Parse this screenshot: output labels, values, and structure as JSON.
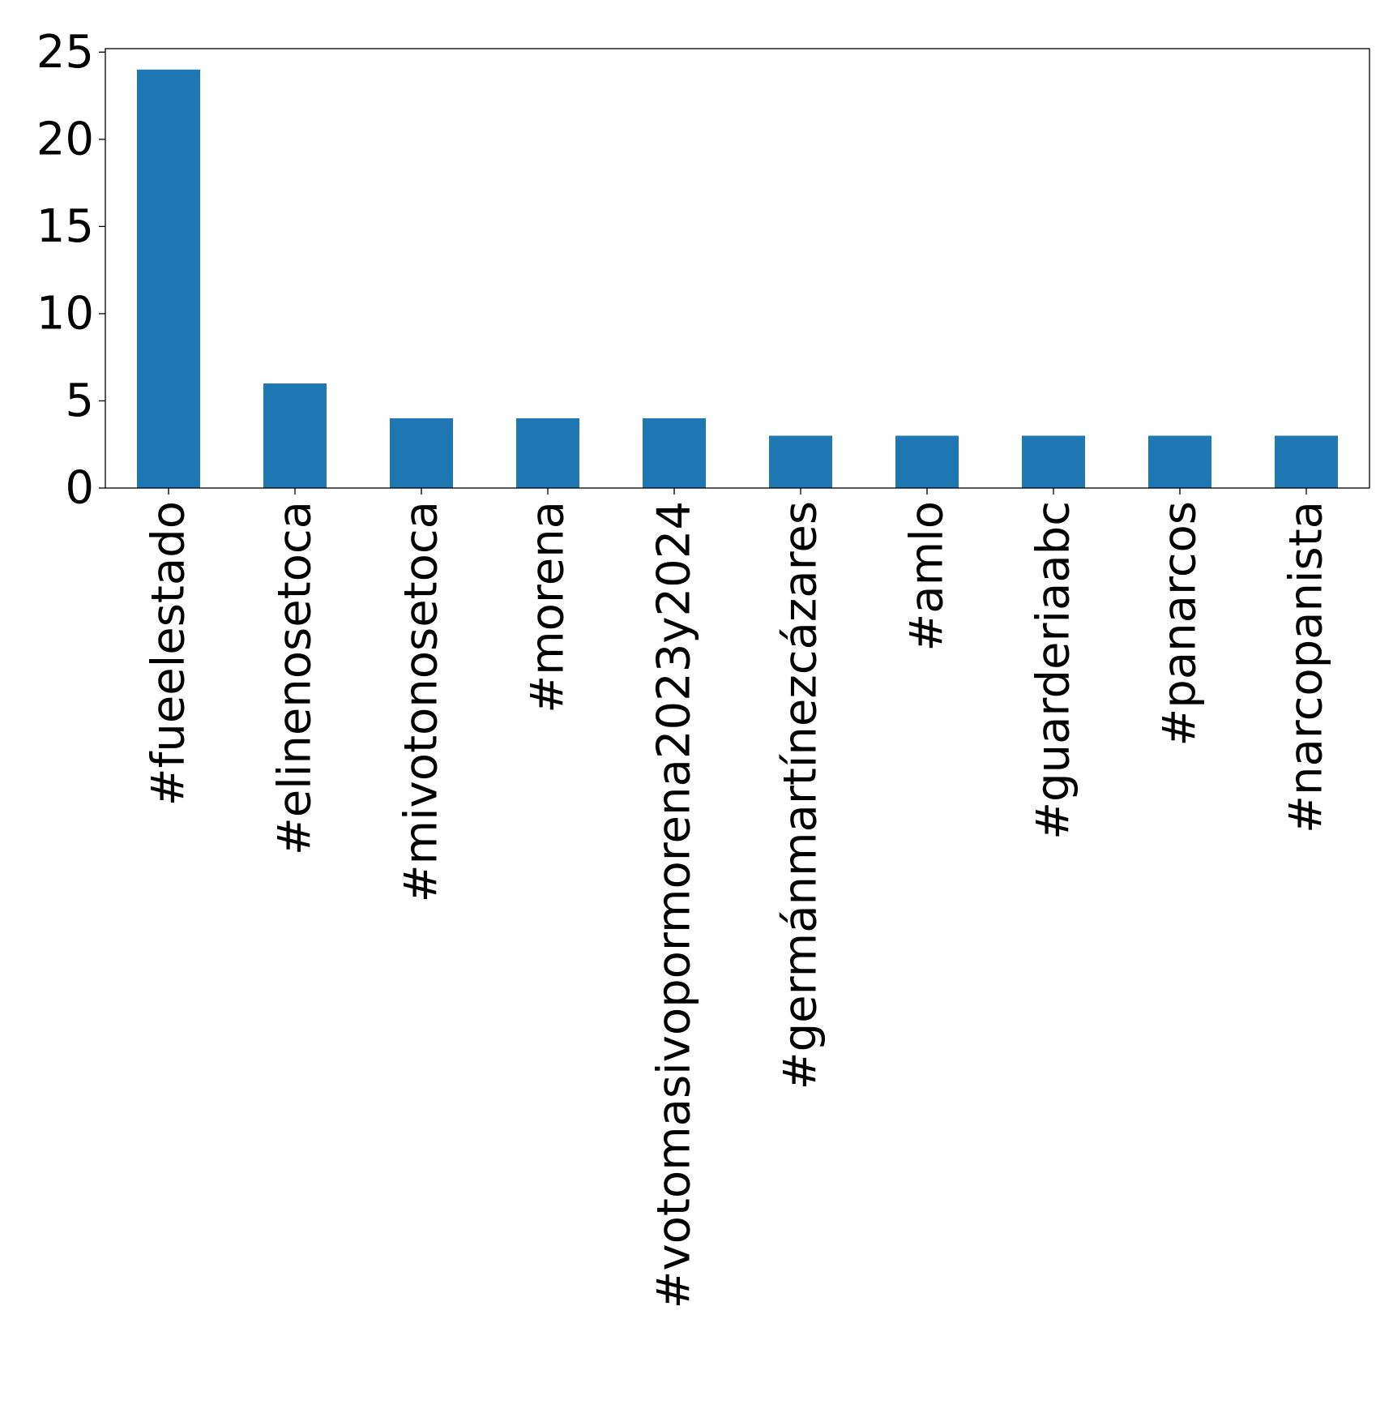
{
  "chart_data": {
    "type": "bar",
    "categories": [
      "#fueelestado",
      "#elinenosetoca",
      "#mivotonosetoca",
      "#morena",
      "#votomasivopormorena2023y2024",
      "#germánmartínezcázares",
      "#amlo",
      "#guarderiaabc",
      "#panarcos",
      "#narcopanista"
    ],
    "values": [
      24,
      6,
      4,
      4,
      4,
      3,
      3,
      3,
      3,
      3
    ],
    "title": "",
    "xlabel": "",
    "ylabel": "",
    "ylim": [
      0,
      25.2
    ],
    "yticks": [
      0,
      5,
      10,
      15,
      20,
      25
    ],
    "ytick_labels": [
      "0",
      "5",
      "10",
      "15",
      "20",
      "25"
    ],
    "grid": false,
    "legend": "none",
    "bar_color": "#1f77b4"
  }
}
